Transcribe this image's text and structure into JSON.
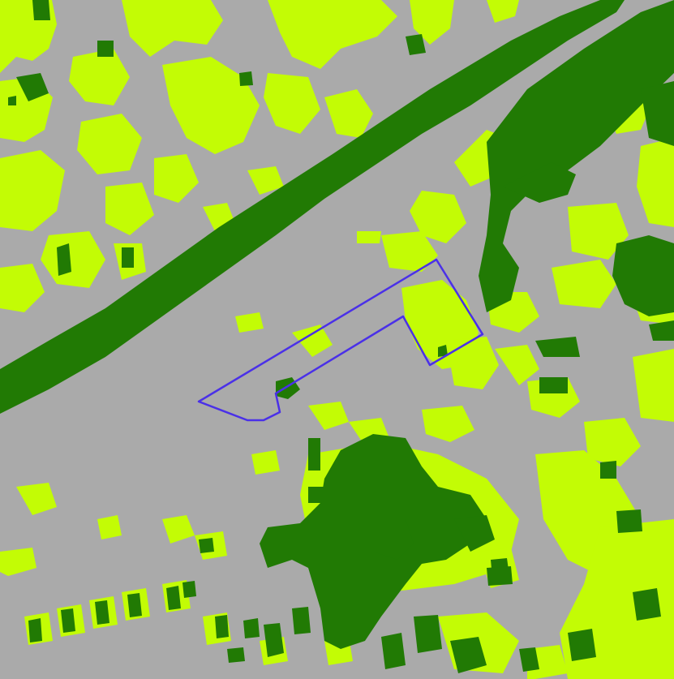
{
  "map": {
    "type": "land-cover-classification",
    "classes": [
      {
        "name": "impervious",
        "color": "#aaaaaa"
      },
      {
        "name": "grass-low-vegetation",
        "color": "#c3fc05"
      },
      {
        "name": "tree-canopy",
        "color": "#217a04"
      }
    ],
    "outline": {
      "name": "site-boundary",
      "color": "#4a30e8"
    }
  }
}
